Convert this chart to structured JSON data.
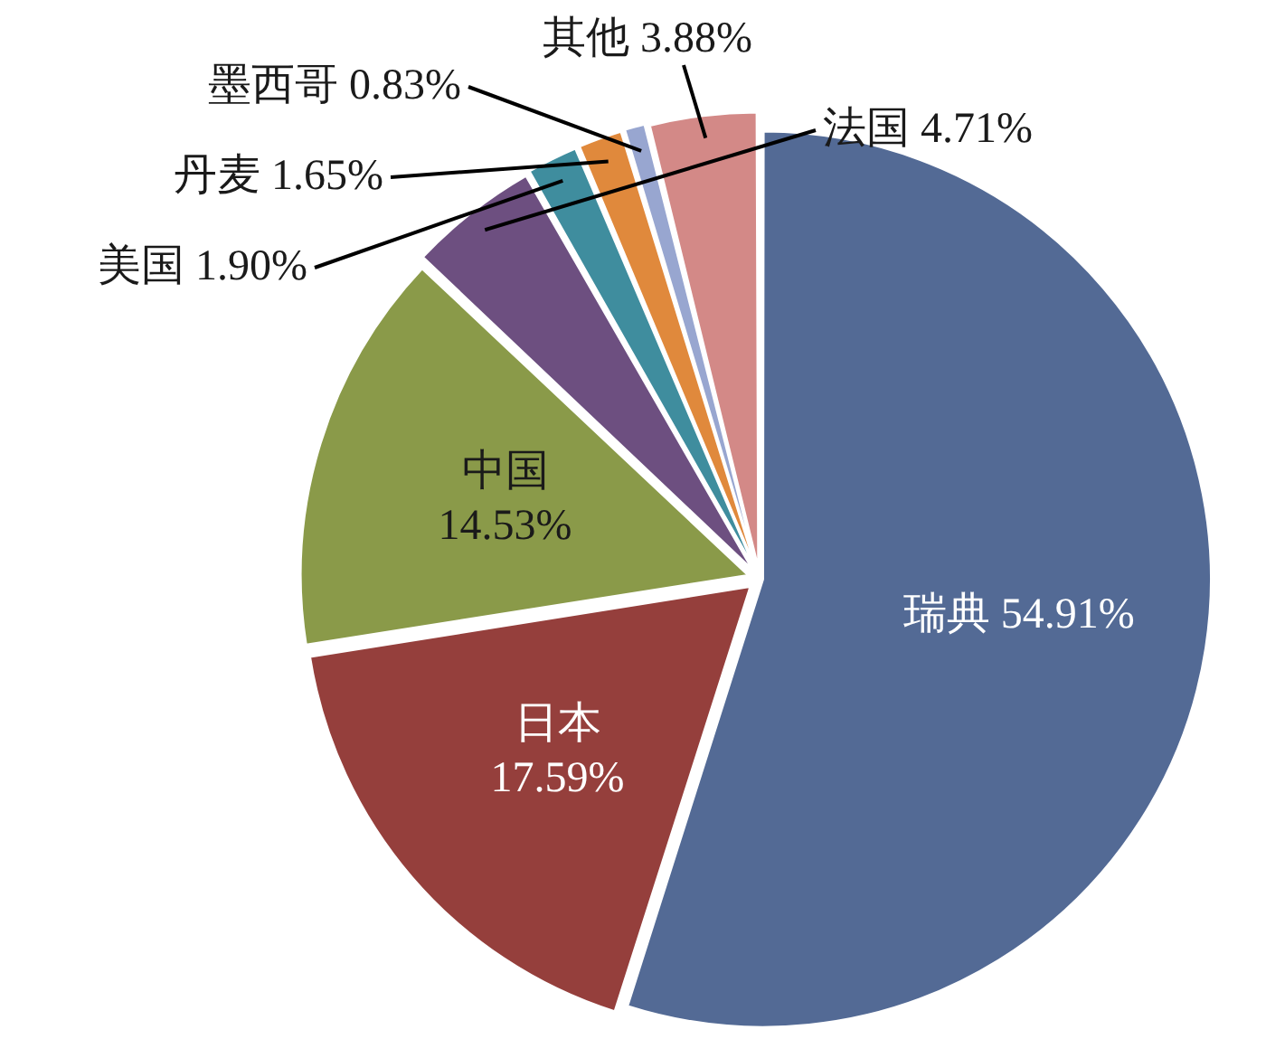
{
  "chart_data": {
    "type": "pie",
    "categories": [
      "瑞典",
      "日本",
      "中国",
      "法国",
      "美国",
      "丹麦",
      "墨西哥",
      "其他"
    ],
    "values": [
      54.91,
      17.59,
      14.53,
      4.71,
      1.9,
      1.65,
      0.83,
      3.88
    ],
    "value_labels": [
      "54.91%",
      "17.59%",
      "14.53%",
      "4.71%",
      "1.90%",
      "1.65%",
      "0.83%",
      "3.88%"
    ],
    "colors": [
      "#536a95",
      "#953f3c",
      "#8a9a49",
      "#6d4f80",
      "#3f8d9e",
      "#e0893c",
      "#98a6d0",
      "#d38987"
    ],
    "legend": false
  }
}
